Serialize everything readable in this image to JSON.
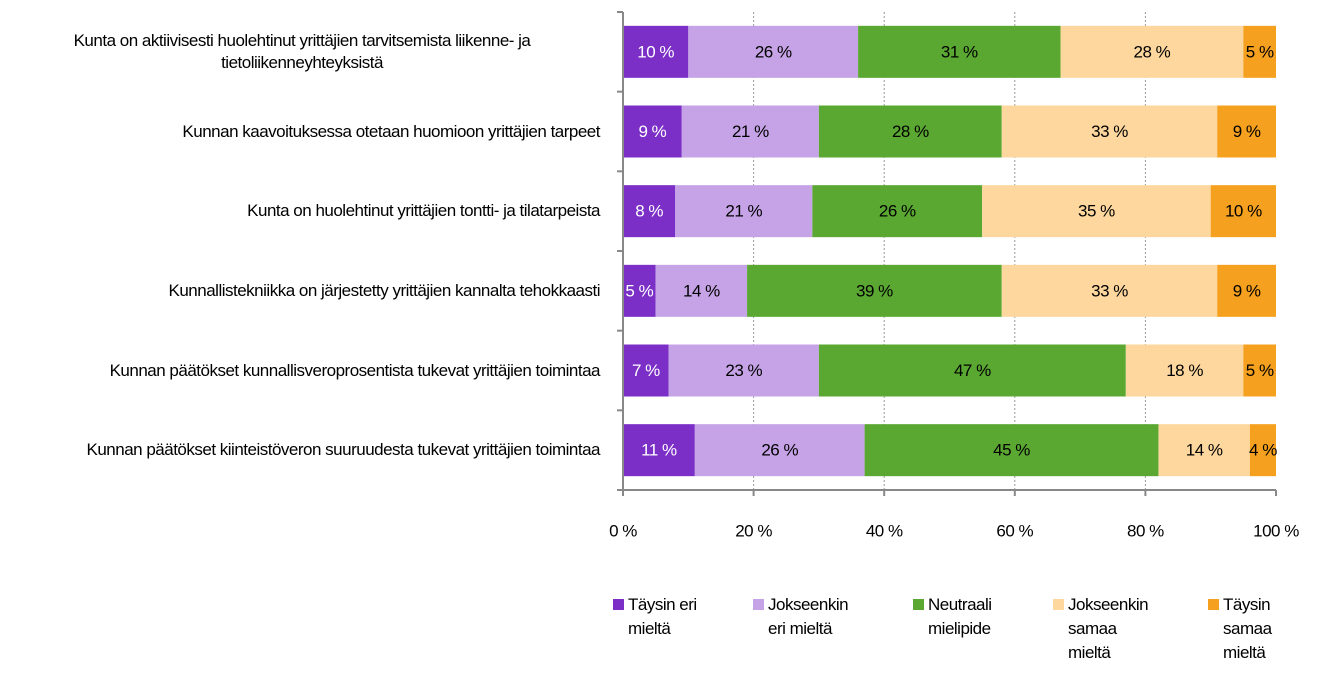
{
  "chart_data": {
    "type": "stacked_barh",
    "categories": [
      "Kunta on aktiivisesti huolehtinut yrittäjien tarvitsemista liikenne- ja tietoliikenneyhteyksistä",
      "Kunnan kaavoituksessa otetaan huomioon yrittäjien tarpeet",
      "Kunta on huolehtinut yrittäjien tontti- ja tilatarpeista",
      "Kunnallistekniikka on järjestetty yrittäjien kannalta tehokkaasti",
      "Kunnan päätökset kunnallisveroprosentista tukevat yrittäjien toimintaa",
      "Kunnan päätökset kiinteistöveron suuruudesta tukevat yrittäjien toimintaa"
    ],
    "series": [
      {
        "name": "Täysin eri mieltä",
        "color": "#7b2fc7",
        "label_color": "#ffffff",
        "values": [
          10,
          9,
          8,
          5,
          7,
          11
        ],
        "value_labels": [
          "10 %",
          "9 %",
          "8 %",
          "5 %",
          "7 %",
          "11 %"
        ]
      },
      {
        "name": "Jokseenkin eri mieltä",
        "color": "#c5a3e6",
        "label_color": "#000000",
        "values": [
          26,
          21,
          21,
          14,
          23,
          26
        ],
        "value_labels": [
          "26 %",
          "21 %",
          "21 %",
          "14 %",
          "23 %",
          "26 %"
        ]
      },
      {
        "name": "Neutraali mielipide",
        "color": "#5aa832",
        "label_color": "#000000",
        "values": [
          31,
          28,
          26,
          39,
          47,
          45
        ],
        "value_labels": [
          "31 %",
          "28 %",
          "26 %",
          "39 %",
          "47 %",
          "45 %"
        ]
      },
      {
        "name": "Jokseenkin samaa mieltä",
        "color": "#fdd79e",
        "label_color": "#000000",
        "values": [
          28,
          33,
          35,
          33,
          18,
          14
        ],
        "value_labels": [
          "28 %",
          "33 %",
          "35 %",
          "33 %",
          "18 %",
          "14 %"
        ]
      },
      {
        "name": "Täysin samaa mieltä",
        "color": "#f5a01e",
        "label_color": "#000000",
        "values": [
          5,
          9,
          10,
          9,
          5,
          4
        ],
        "value_labels": [
          "5 %",
          "9 %",
          "10 %",
          "9 %",
          "5 %",
          "4 %"
        ]
      }
    ],
    "xlim": [
      0,
      100
    ],
    "xticks": [
      {
        "value": 0,
        "label": "0 %"
      },
      {
        "value": 20,
        "label": "20 %"
      },
      {
        "value": 40,
        "label": "40 %"
      },
      {
        "value": 60,
        "label": "60 %"
      },
      {
        "value": 80,
        "label": "80 %"
      },
      {
        "value": 100,
        "label": "100 %"
      }
    ],
    "grid": true,
    "legend": "bottom"
  }
}
